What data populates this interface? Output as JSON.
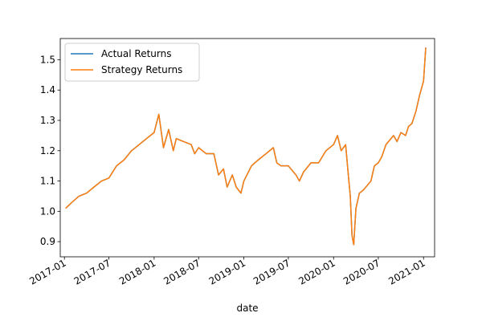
{
  "chart_data": {
    "type": "line",
    "title": "",
    "xlabel": "date",
    "ylabel": "",
    "x_range": [
      "2016-12-15",
      "2021-02-15"
    ],
    "ylim": [
      0.85,
      1.57
    ],
    "grid": false,
    "legend_position": "top-left",
    "x_ticks": [
      {
        "date": "2017-01-01",
        "label": "2017-01"
      },
      {
        "date": "2017-07-01",
        "label": "2017-07"
      },
      {
        "date": "2018-01-01",
        "label": "2018-01"
      },
      {
        "date": "2018-07-01",
        "label": "2018-07"
      },
      {
        "date": "2019-01-01",
        "label": "2019-01"
      },
      {
        "date": "2019-07-01",
        "label": "2019-07"
      },
      {
        "date": "2020-01-01",
        "label": "2020-01"
      },
      {
        "date": "2020-07-01",
        "label": "2020-07"
      },
      {
        "date": "2021-01-01",
        "label": "2021-01"
      }
    ],
    "y_ticks": [
      {
        "value": 0.9,
        "label": "0.9"
      },
      {
        "value": 1.0,
        "label": "1.0"
      },
      {
        "value": 1.1,
        "label": "1.1"
      },
      {
        "value": 1.2,
        "label": "1.2"
      },
      {
        "value": 1.3,
        "label": "1.3"
      },
      {
        "value": 1.4,
        "label": "1.4"
      },
      {
        "value": 1.5,
        "label": "1.5"
      }
    ],
    "x": [
      "2017-01-06",
      "2017-02-01",
      "2017-03-01",
      "2017-04-01",
      "2017-05-01",
      "2017-06-01",
      "2017-07-01",
      "2017-08-01",
      "2017-09-01",
      "2017-10-01",
      "2017-11-01",
      "2017-12-01",
      "2018-01-01",
      "2018-01-20",
      "2018-02-08",
      "2018-03-01",
      "2018-03-20",
      "2018-04-01",
      "2018-05-01",
      "2018-06-01",
      "2018-06-15",
      "2018-07-01",
      "2018-08-01",
      "2018-09-01",
      "2018-09-20",
      "2018-10-10",
      "2018-10-25",
      "2018-11-15",
      "2018-12-01",
      "2018-12-20",
      "2019-01-01",
      "2019-02-01",
      "2019-03-01",
      "2019-04-01",
      "2019-05-01",
      "2019-05-15",
      "2019-06-01",
      "2019-07-01",
      "2019-08-01",
      "2019-08-15",
      "2019-09-01",
      "2019-10-01",
      "2019-11-01",
      "2019-12-01",
      "2020-01-01",
      "2020-01-17",
      "2020-02-01",
      "2020-02-19",
      "2020-03-01",
      "2020-03-09",
      "2020-03-16",
      "2020-03-23",
      "2020-04-01",
      "2020-04-15",
      "2020-05-01",
      "2020-06-01",
      "2020-06-15",
      "2020-07-01",
      "2020-07-15",
      "2020-08-01",
      "2020-09-01",
      "2020-09-15",
      "2020-10-01",
      "2020-10-20",
      "2020-11-01",
      "2020-11-15",
      "2020-12-01",
      "2020-12-15",
      "2021-01-01",
      "2021-01-10"
    ],
    "series": [
      {
        "name": "Actual Returns",
        "color": "#1f77b4",
        "values": [
          1.01,
          1.03,
          1.05,
          1.06,
          1.08,
          1.1,
          1.11,
          1.15,
          1.17,
          1.2,
          1.22,
          1.24,
          1.26,
          1.32,
          1.21,
          1.27,
          1.2,
          1.24,
          1.23,
          1.22,
          1.19,
          1.21,
          1.19,
          1.19,
          1.12,
          1.14,
          1.08,
          1.12,
          1.08,
          1.06,
          1.1,
          1.15,
          1.17,
          1.19,
          1.21,
          1.16,
          1.15,
          1.15,
          1.12,
          1.1,
          1.13,
          1.16,
          1.16,
          1.2,
          1.22,
          1.25,
          1.2,
          1.22,
          1.12,
          1.05,
          0.92,
          0.89,
          1.01,
          1.06,
          1.07,
          1.1,
          1.15,
          1.16,
          1.18,
          1.22,
          1.25,
          1.23,
          1.26,
          1.25,
          1.28,
          1.29,
          1.33,
          1.38,
          1.43,
          1.54
        ]
      },
      {
        "name": "Strategy Returns",
        "color": "#ff7f0e",
        "values": [
          1.01,
          1.03,
          1.05,
          1.06,
          1.08,
          1.1,
          1.11,
          1.15,
          1.17,
          1.2,
          1.22,
          1.24,
          1.26,
          1.32,
          1.21,
          1.27,
          1.2,
          1.24,
          1.23,
          1.22,
          1.19,
          1.21,
          1.19,
          1.19,
          1.12,
          1.14,
          1.08,
          1.12,
          1.08,
          1.06,
          1.1,
          1.15,
          1.17,
          1.19,
          1.21,
          1.16,
          1.15,
          1.15,
          1.12,
          1.1,
          1.13,
          1.16,
          1.16,
          1.2,
          1.22,
          1.25,
          1.2,
          1.22,
          1.12,
          1.05,
          0.92,
          0.89,
          1.01,
          1.06,
          1.07,
          1.1,
          1.15,
          1.16,
          1.18,
          1.22,
          1.25,
          1.23,
          1.26,
          1.25,
          1.28,
          1.29,
          1.33,
          1.38,
          1.43,
          1.54
        ]
      }
    ]
  }
}
